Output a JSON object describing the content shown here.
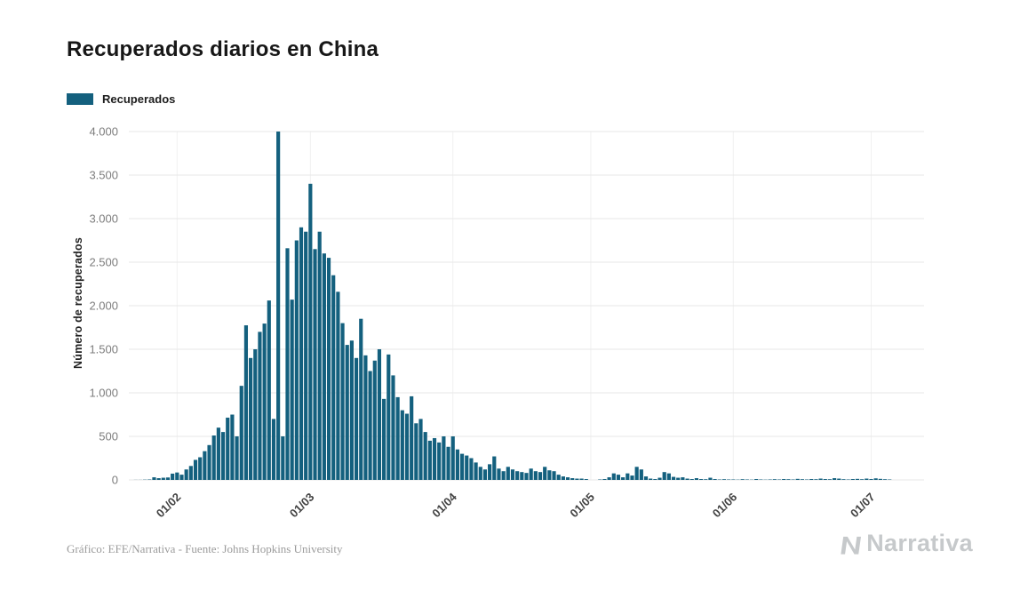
{
  "header": {
    "title": "Recuperados diarios en China"
  },
  "footer": {
    "credit": "Gráfico: EFE/Narrativa - Fuente: Johns Hopkins University",
    "brand": "Narrativa"
  },
  "chart_data": {
    "type": "bar",
    "title": "Recuperados diarios en China",
    "ylabel": "Número de recuperados",
    "legend_label": "Recuperados",
    "bar_color": "#14607E",
    "grid_color": "#e7e7e7",
    "vgrid_color": "#f1f1f1",
    "ylim": [
      0,
      4000
    ],
    "y_ticks": [
      {
        "value": 0,
        "label": "0"
      },
      {
        "value": 500,
        "label": "500"
      },
      {
        "value": 1000,
        "label": "1.000"
      },
      {
        "value": 1500,
        "label": "1.500"
      },
      {
        "value": 2000,
        "label": "2.000"
      },
      {
        "value": 2500,
        "label": "2.500"
      },
      {
        "value": 3000,
        "label": "3.000"
      },
      {
        "value": 3500,
        "label": "3.500"
      },
      {
        "value": 4000,
        "label": "4.000"
      }
    ],
    "x_ticks": [
      {
        "index": 10,
        "label": "01/02"
      },
      {
        "index": 39,
        "label": "01/03"
      },
      {
        "index": 70,
        "label": "01/04"
      },
      {
        "index": 100,
        "label": "01/05"
      },
      {
        "index": 131,
        "label": "01/06"
      },
      {
        "index": 161,
        "label": "01/07"
      }
    ],
    "values": [
      0,
      1,
      1,
      3,
      5,
      30,
      20,
      25,
      28,
      72,
      85,
      60,
      120,
      160,
      230,
      260,
      330,
      400,
      510,
      600,
      550,
      715,
      750,
      500,
      1080,
      1775,
      1400,
      1500,
      1700,
      1795,
      2060,
      700,
      4000,
      500,
      2660,
      2070,
      2750,
      2900,
      2850,
      3400,
      2650,
      2850,
      2600,
      2550,
      2350,
      2160,
      1800,
      1550,
      1600,
      1400,
      1850,
      1430,
      1250,
      1370,
      1500,
      930,
      1440,
      1200,
      950,
      800,
      760,
      960,
      650,
      700,
      550,
      450,
      480,
      430,
      500,
      380,
      500,
      350,
      300,
      280,
      250,
      200,
      150,
      120,
      180,
      270,
      130,
      100,
      150,
      120,
      100,
      90,
      80,
      130,
      100,
      90,
      150,
      110,
      100,
      60,
      40,
      30,
      20,
      15,
      15,
      10,
      0,
      0,
      5,
      10,
      30,
      75,
      60,
      30,
      75,
      50,
      150,
      120,
      40,
      15,
      10,
      25,
      90,
      75,
      35,
      25,
      30,
      15,
      10,
      20,
      10,
      8,
      25,
      10,
      5,
      8,
      5,
      5,
      3,
      8,
      5,
      3,
      10,
      5,
      3,
      5,
      8,
      5,
      10,
      8,
      5,
      12,
      8,
      5,
      10,
      8,
      15,
      10,
      8,
      20,
      15,
      8,
      5,
      10,
      12,
      8,
      15,
      10,
      18,
      12,
      8,
      5,
      0,
      0,
      0,
      0,
      0,
      0,
      0
    ]
  }
}
